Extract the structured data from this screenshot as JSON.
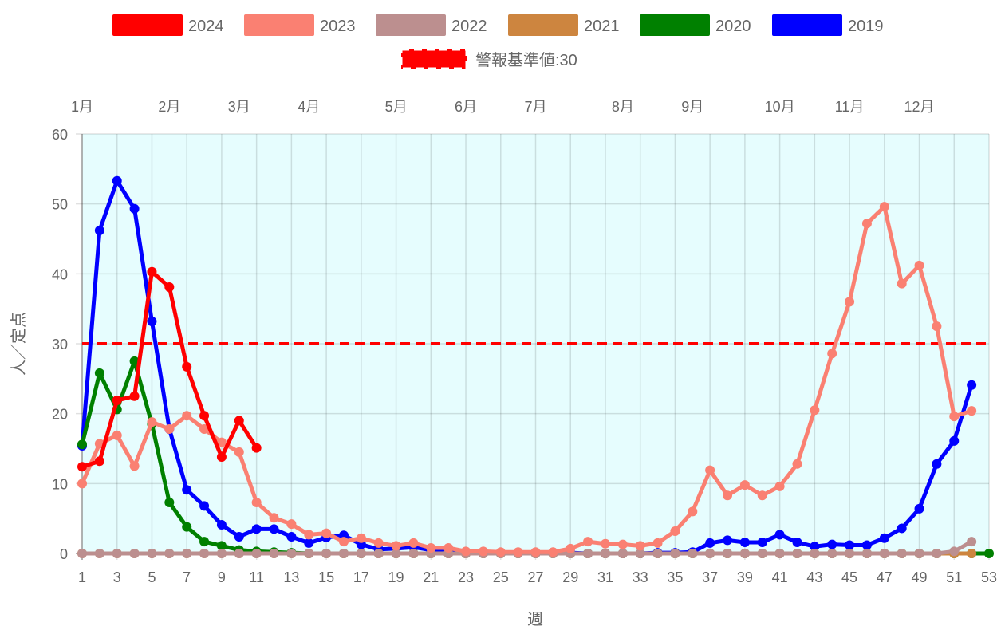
{
  "chart_data": {
    "type": "line",
    "xlabel": "週",
    "ylabel": "人／定点",
    "xlim": [
      1,
      53
    ],
    "ylim": [
      0,
      60
    ],
    "grid": true,
    "legend_position": "top",
    "x_ticks": [
      1,
      3,
      5,
      7,
      9,
      11,
      13,
      15,
      17,
      19,
      21,
      23,
      25,
      27,
      29,
      31,
      33,
      35,
      37,
      39,
      41,
      43,
      45,
      47,
      49,
      51,
      53
    ],
    "y_ticks": [
      0,
      10,
      20,
      30,
      40,
      50,
      60
    ],
    "months": [
      {
        "label": "1月",
        "week": 1
      },
      {
        "label": "2月",
        "week": 6
      },
      {
        "label": "3月",
        "week": 10
      },
      {
        "label": "4月",
        "week": 14
      },
      {
        "label": "5月",
        "week": 19
      },
      {
        "label": "6月",
        "week": 23
      },
      {
        "label": "7月",
        "week": 27
      },
      {
        "label": "8月",
        "week": 32
      },
      {
        "label": "9月",
        "week": 36
      },
      {
        "label": "10月",
        "week": 41
      },
      {
        "label": "11月",
        "week": 45
      },
      {
        "label": "12月",
        "week": 49
      }
    ],
    "threshold": {
      "label": "警報基準値:30",
      "value": 30,
      "color": "#ff0000"
    },
    "series": [
      {
        "name": "2024",
        "color": "#ff0000",
        "values": [
          12.4,
          13.2,
          21.9,
          22.5,
          40.3,
          38.1,
          26.7,
          19.7,
          13.8,
          19.0,
          15.1
        ]
      },
      {
        "name": "2023",
        "color": "#fa8072",
        "values": [
          10.0,
          15.7,
          16.9,
          12.5,
          18.8,
          17.8,
          19.7,
          17.8,
          15.9,
          14.5,
          7.3,
          5.1,
          4.2,
          2.7,
          2.9,
          1.7,
          2.2,
          1.5,
          1.1,
          1.5,
          0.8,
          0.8,
          0.3,
          0.3,
          0.2,
          0.2,
          0.2,
          0.2,
          0.7,
          1.7,
          1.4,
          1.3,
          1.1,
          1.5,
          3.2,
          6.0,
          11.9,
          8.3,
          9.8,
          8.3,
          9.6,
          12.8,
          20.5,
          28.6,
          36.0,
          47.2,
          49.6,
          38.6,
          41.2,
          32.5,
          19.6,
          20.4
        ]
      },
      {
        "name": "2022",
        "color": "#bc8f8f",
        "values": [
          0,
          0,
          0,
          0,
          0,
          0,
          0,
          0,
          0,
          0,
          0,
          0,
          0,
          0,
          0,
          0,
          0,
          0,
          0,
          0,
          0,
          0,
          0,
          0,
          0,
          0,
          0,
          0,
          0,
          0,
          0,
          0,
          0,
          0,
          0,
          0,
          0,
          0,
          0,
          0,
          0,
          0,
          0,
          0,
          0,
          0,
          0,
          0,
          0,
          0,
          0.3,
          1.7
        ]
      },
      {
        "name": "2021",
        "color": "#cd853f",
        "values": [
          0,
          0,
          0,
          0,
          0,
          0,
          0,
          0,
          0,
          0,
          0,
          0,
          0,
          0,
          0,
          0,
          0,
          0,
          0,
          0,
          0,
          0,
          0,
          0,
          0,
          0,
          0,
          0,
          0,
          0,
          0,
          0,
          0,
          0,
          0,
          0,
          0,
          0,
          0,
          0,
          0,
          0,
          0,
          0,
          0,
          0,
          0,
          0,
          0,
          0,
          0,
          0
        ]
      },
      {
        "name": "2020",
        "color": "#008000",
        "values": [
          15.6,
          25.8,
          20.6,
          27.5,
          18.5,
          7.3,
          3.8,
          1.7,
          1.1,
          0.5,
          0.3,
          0.2,
          0.1,
          0,
          0,
          0,
          0,
          0,
          0,
          0,
          0,
          0,
          0,
          0,
          0,
          0,
          0,
          0,
          0,
          0,
          0,
          0,
          0,
          0,
          0,
          0,
          0,
          0,
          0,
          0,
          0,
          0,
          0,
          0,
          0,
          0,
          0,
          0,
          0,
          0,
          0,
          0,
          0
        ]
      },
      {
        "name": "2019",
        "color": "#0000ff",
        "values": [
          15.4,
          46.2,
          53.3,
          49.3,
          33.2,
          17.8,
          9.1,
          6.8,
          4.1,
          2.4,
          3.5,
          3.5,
          2.4,
          1.5,
          2.3,
          2.6,
          1.3,
          0.6,
          0.7,
          0.9,
          0.5,
          0.3,
          0.2,
          0.2,
          0.1,
          0.1,
          0.1,
          0.1,
          0.1,
          0,
          0,
          0,
          0,
          0.1,
          0.1,
          0.2,
          1.5,
          1.9,
          1.6,
          1.6,
          2.7,
          1.6,
          1.0,
          1.3,
          1.2,
          1.2,
          2.2,
          3.6,
          6.4,
          12.8,
          16.1,
          24.1
        ]
      }
    ]
  }
}
